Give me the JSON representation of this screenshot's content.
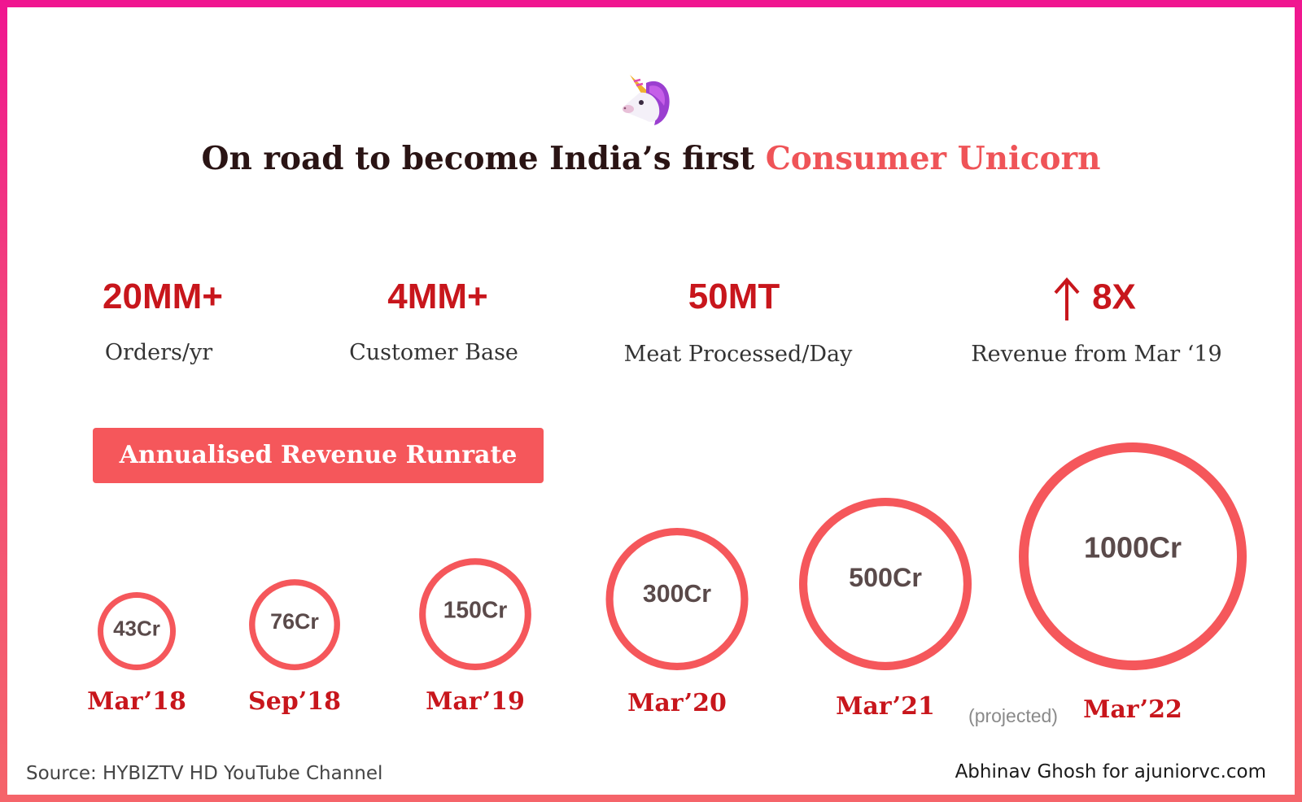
{
  "header": {
    "title_main": "On road to become India’s first ",
    "title_accent": "Consumer Unicorn",
    "icon": "unicorn-icon"
  },
  "stats": [
    {
      "value": "20MM+",
      "label": "Orders/yr"
    },
    {
      "value": "4MM+",
      "label": "Customer Base"
    },
    {
      "value": "50MT",
      "label": "Meat Processed/Day"
    },
    {
      "value": "8X",
      "label": "Revenue from Mar ‘19",
      "icon": "up-arrow-icon"
    }
  ],
  "banner": {
    "label": "Annualised Revenue Runrate"
  },
  "chart_data": {
    "type": "bubble",
    "title": "Annualised Revenue Runrate",
    "categories": [
      "Mar’18",
      "Sep’18",
      "Mar’19",
      "Mar’20",
      "Mar’21",
      "Mar’22"
    ],
    "values": [
      43,
      76,
      150,
      300,
      500,
      1000
    ],
    "value_labels": [
      "43Cr",
      "76Cr",
      "150Cr",
      "300Cr",
      "500Cr",
      "1000Cr"
    ],
    "unit": "Cr",
    "annotation": "(projected)"
  },
  "footer": {
    "source": "Source: HYBIZTV HD YouTube Channel",
    "credit": "Abhinav Ghosh for ajuniorvc.com"
  },
  "colors": {
    "accent": "#ef5458",
    "stat_red": "#c8161c",
    "circle": "#f5575b",
    "value_text": "#5a4a4a",
    "frame_top": "#f01590",
    "frame_bottom": "#f5646a"
  }
}
